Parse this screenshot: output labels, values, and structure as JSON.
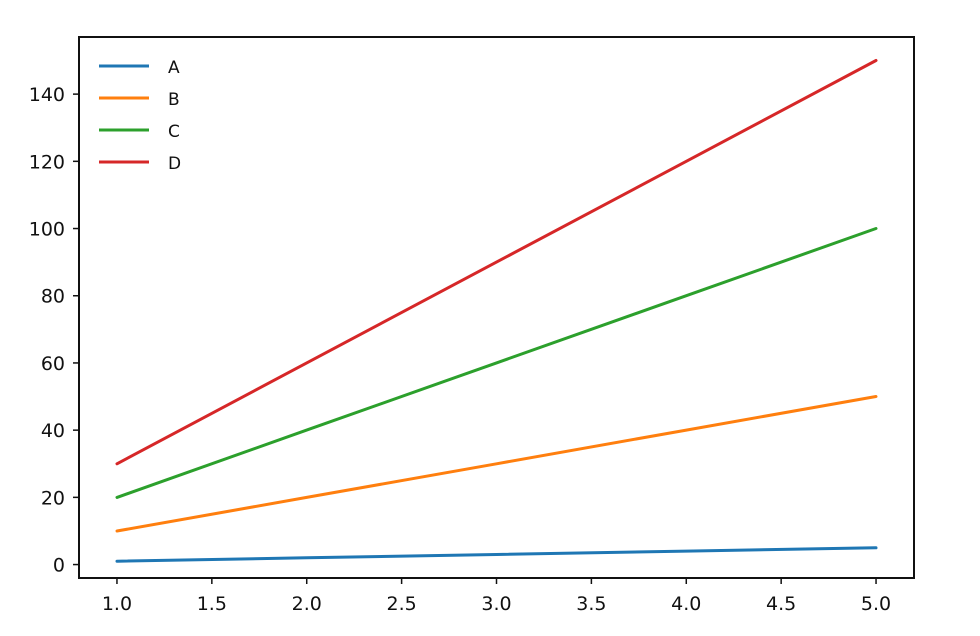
{
  "chart_data": {
    "type": "line",
    "title": "",
    "xlabel": "",
    "ylabel": "",
    "x": [
      1.0,
      2.0,
      3.0,
      4.0,
      5.0
    ],
    "xlim": [
      0.8,
      5.2
    ],
    "ylim": [
      -4,
      157
    ],
    "grid": false,
    "legend_position": "top-left",
    "x_ticks": [
      1.0,
      1.5,
      2.0,
      2.5,
      3.0,
      3.5,
      4.0,
      4.5,
      5.0
    ],
    "x_tick_labels": [
      "1.0",
      "1.5",
      "2.0",
      "2.5",
      "3.0",
      "3.5",
      "4.0",
      "4.5",
      "5.0"
    ],
    "y_ticks": [
      0,
      20,
      40,
      60,
      80,
      100,
      120,
      140
    ],
    "y_tick_labels": [
      "0",
      "20",
      "40",
      "60",
      "80",
      "100",
      "120",
      "140"
    ],
    "series": [
      {
        "name": "A",
        "color": "#1f77b4",
        "values": [
          1,
          2,
          3,
          4,
          5
        ]
      },
      {
        "name": "B",
        "color": "#ff7f0e",
        "values": [
          10,
          20,
          30,
          40,
          50
        ]
      },
      {
        "name": "C",
        "color": "#2ca02c",
        "values": [
          20,
          40,
          60,
          80,
          100
        ]
      },
      {
        "name": "D",
        "color": "#d62728",
        "values": [
          30,
          60,
          90,
          120,
          150
        ]
      }
    ]
  }
}
